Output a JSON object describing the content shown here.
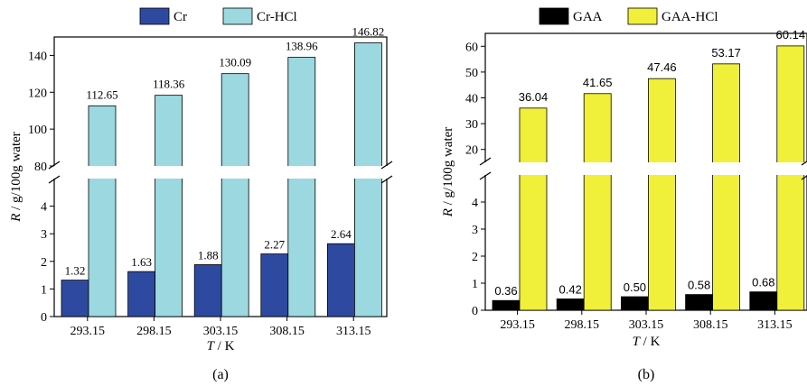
{
  "chart_data": [
    {
      "type": "bar",
      "panel_label": "(a)",
      "categories": [
        "293.15",
        "298.15",
        "303.15",
        "308.15",
        "313.15"
      ],
      "series": [
        {
          "name": "Cr",
          "values": [
            1.32,
            1.63,
            1.88,
            2.27,
            2.64
          ],
          "color": "#2e4aa0"
        },
        {
          "name": "Cr-HCl",
          "values": [
            112.65,
            118.36,
            130.09,
            138.96,
            146.82
          ],
          "color": "#9bd8e0"
        }
      ],
      "value_labels": [
        [
          "1.32",
          "1.63",
          "1.88",
          "2.27",
          "2.64"
        ],
        [
          "112.65",
          "118.36",
          "130.09",
          "138.96",
          "146.82"
        ]
      ],
      "xlabel_italic": "T",
      "xlabel_rest": " / K",
      "ylabel_italic": "R",
      "ylabel_rest": " / g/100g water",
      "y_lower": {
        "range": [
          0,
          5
        ],
        "ticks": [
          0,
          1,
          2,
          3,
          4
        ]
      },
      "y_upper": {
        "range": [
          80,
          150
        ],
        "ticks": [
          80,
          100,
          120,
          140
        ]
      },
      "axis_break": true,
      "legend_position": "top-center"
    },
    {
      "type": "bar",
      "panel_label": "(b)",
      "categories": [
        "293.15",
        "298.15",
        "303.15",
        "308.15",
        "313.15"
      ],
      "series": [
        {
          "name": "GAA",
          "values": [
            0.36,
            0.42,
            0.5,
            0.58,
            0.68
          ],
          "color": "#000000"
        },
        {
          "name": "GAA-HCl",
          "values": [
            36.04,
            41.65,
            47.46,
            53.17,
            60.14
          ],
          "color": "#f0ef3a"
        }
      ],
      "value_labels": [
        [
          "0.36",
          "0.42",
          "0.50",
          "0.58",
          "0.68"
        ],
        [
          "36.04",
          "41.65",
          "47.46",
          "53.17",
          "60.14"
        ]
      ],
      "xlabel_italic": "T",
      "xlabel_rest": " / K",
      "ylabel_italic": "R",
      "ylabel_rest": " / g/100g water",
      "y_lower": {
        "range": [
          0,
          5
        ],
        "ticks": [
          0,
          1,
          2,
          3,
          4
        ]
      },
      "y_upper": {
        "range": [
          15,
          65
        ],
        "ticks": [
          20,
          30,
          40,
          50,
          60
        ]
      },
      "axis_break": true,
      "legend_position": "top-center"
    }
  ]
}
